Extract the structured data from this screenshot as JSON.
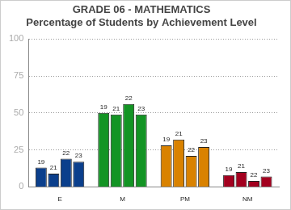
{
  "chart_data": {
    "type": "bar",
    "title": "GRADE 06 - MATHEMATICS",
    "subtitle": "Percentage of Students by Achievement Level",
    "categories": [
      "E",
      "M",
      "PM",
      "NM"
    ],
    "series": [
      {
        "name": "19",
        "colors": [
          "#0b3f8c",
          "#139424",
          "#d98200",
          "#a3001f"
        ],
        "values": [
          13,
          50,
          28,
          8
        ]
      },
      {
        "name": "21",
        "colors": [
          "#0b3f8c",
          "#139424",
          "#d98200",
          "#a3001f"
        ],
        "values": [
          9,
          49,
          32,
          10
        ]
      },
      {
        "name": "22",
        "colors": [
          "#0b3f8c",
          "#139424",
          "#d98200",
          "#a3001f"
        ],
        "values": [
          19,
          56,
          21,
          4
        ]
      },
      {
        "name": "23",
        "colors": [
          "#0b3f8c",
          "#139424",
          "#d98200",
          "#a3001f"
        ],
        "values": [
          17,
          49,
          27,
          7
        ]
      }
    ],
    "ylim": [
      0,
      100
    ],
    "yticks": [
      0,
      25,
      50,
      75,
      100
    ],
    "grid": true
  }
}
